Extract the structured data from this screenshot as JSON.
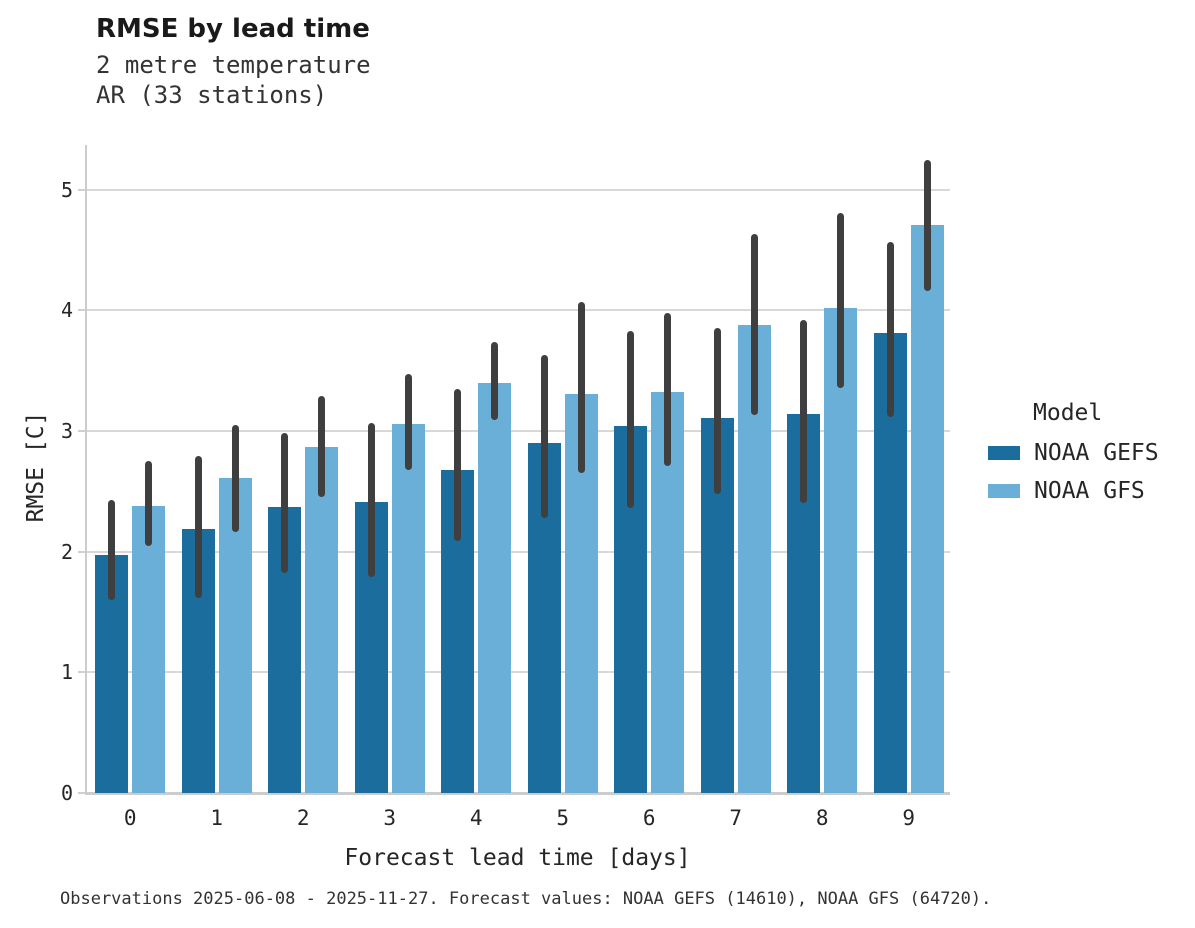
{
  "title": "RMSE by lead time",
  "subtitle": [
    "2 metre temperature",
    "AR (33 stations)"
  ],
  "caption": "Observations 2025-06-08 - 2025-11-27. Forecast values: NOAA GEFS (14610), NOAA GFS (64720).",
  "legend": {
    "title": "Model",
    "entries": [
      {
        "label": "NOAA GEFS",
        "color": "#1a6d9c"
      },
      {
        "label": "NOAA GFS",
        "color": "#69afd8"
      }
    ]
  },
  "chart_data": {
    "type": "bar",
    "title": "RMSE by lead time",
    "subtitle": "2 metre temperature / AR (33 stations)",
    "xlabel": "Forecast lead time [days]",
    "ylabel": "RMSE [C]",
    "categories": [
      "0",
      "1",
      "2",
      "3",
      "4",
      "5",
      "6",
      "7",
      "8",
      "9"
    ],
    "yticks": [
      0,
      1,
      2,
      3,
      4,
      5
    ],
    "ylim": [
      0,
      5.37
    ],
    "grid": true,
    "legend_position": "right",
    "error_bar_color": "#3f3f3f",
    "series": [
      {
        "name": "NOAA GEFS",
        "color": "#1a6d9c",
        "values": [
          1.97,
          2.19,
          2.37,
          2.41,
          2.68,
          2.9,
          3.04,
          3.11,
          3.14,
          3.81
        ],
        "err_low": [
          1.6,
          1.62,
          1.82,
          1.79,
          2.09,
          2.28,
          2.36,
          2.48,
          2.4,
          3.12
        ],
        "err_high": [
          2.43,
          2.79,
          2.98,
          3.07,
          3.35,
          3.63,
          3.83,
          3.85,
          3.92,
          4.57
        ]
      },
      {
        "name": "NOAA GFS",
        "color": "#69afd8",
        "values": [
          2.38,
          2.61,
          2.87,
          3.06,
          3.4,
          3.31,
          3.32,
          3.88,
          4.02,
          4.71
        ],
        "err_low": [
          2.05,
          2.16,
          2.45,
          2.68,
          3.09,
          2.65,
          2.71,
          3.13,
          3.36,
          4.16
        ],
        "err_high": [
          2.75,
          3.05,
          3.29,
          3.47,
          3.74,
          4.07,
          3.98,
          4.63,
          4.81,
          5.25
        ]
      }
    ]
  }
}
